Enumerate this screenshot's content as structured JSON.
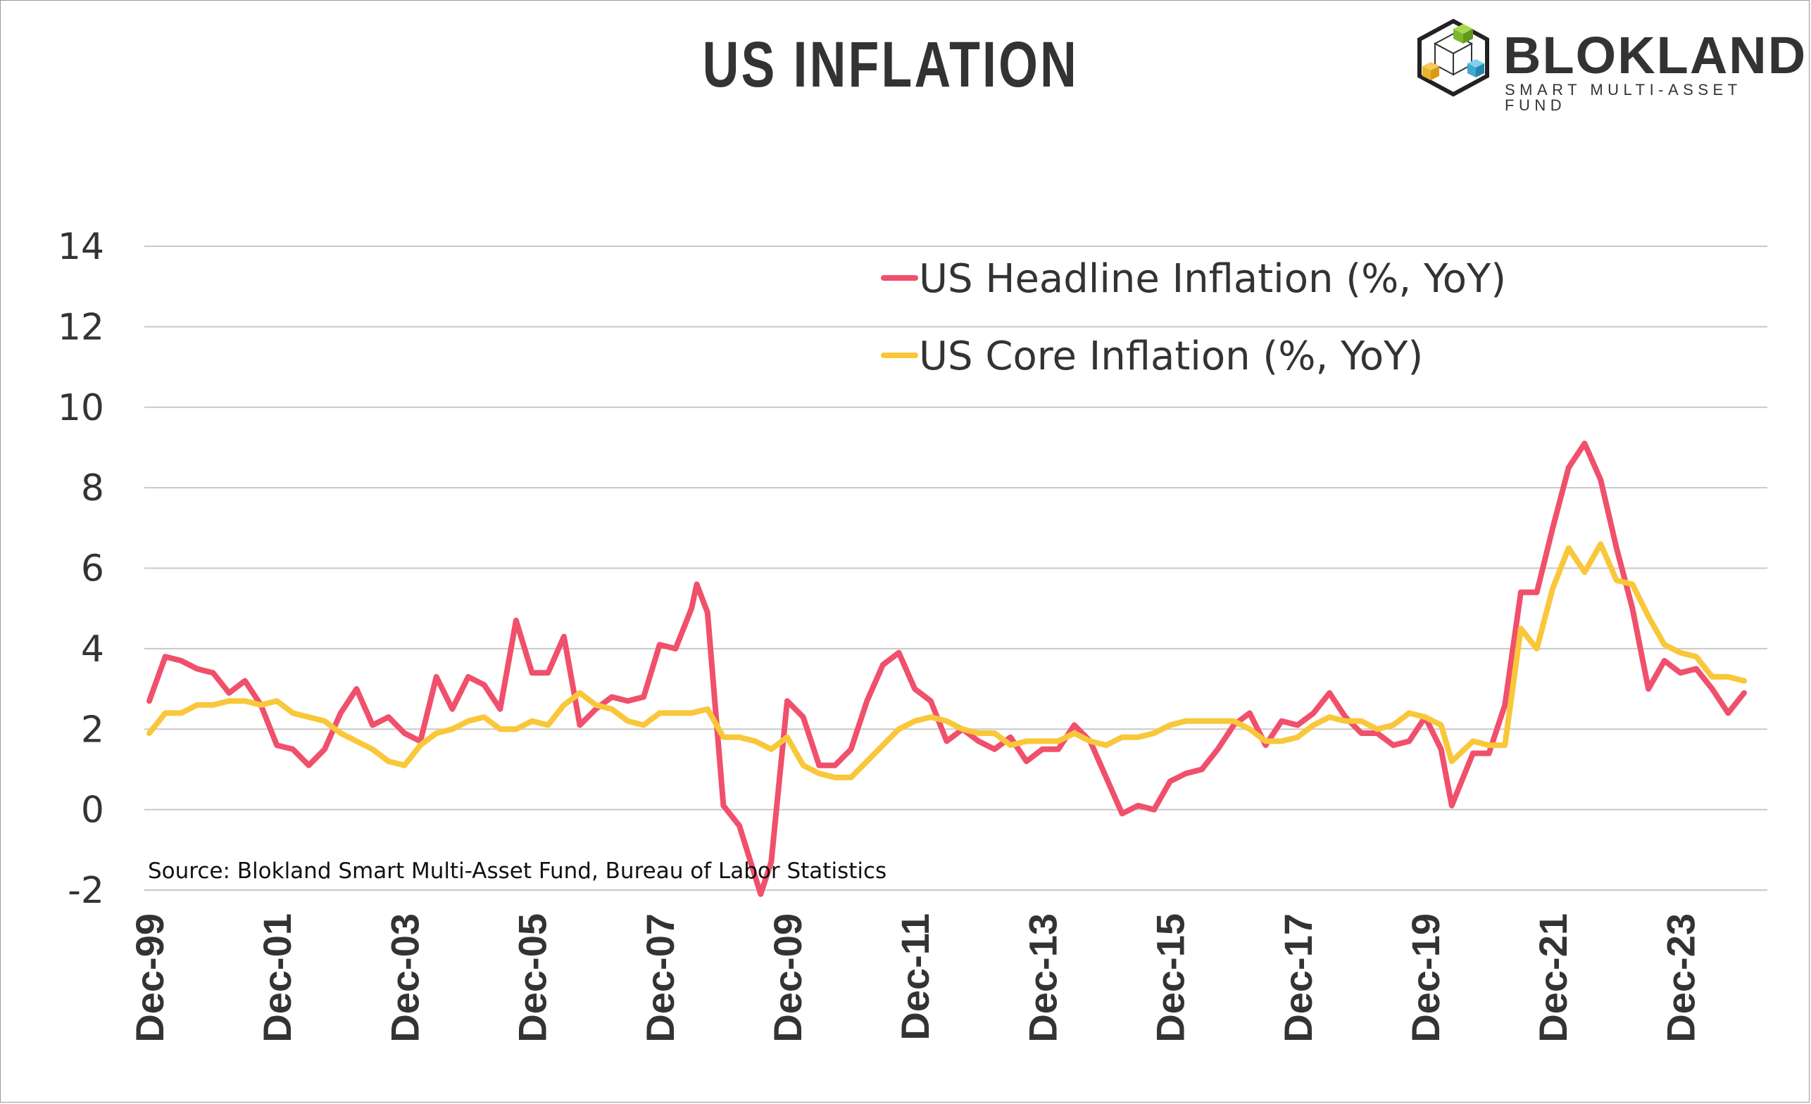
{
  "header": {
    "title": "US INFLATION"
  },
  "logo": {
    "name": "BLOKLAND",
    "tagline": "SMART MULTI-ASSET FUND",
    "icon": "cube-logo-icon"
  },
  "colors": {
    "headline": "#F0506B",
    "core": "#F9C73A",
    "grid": "#c8c8c8",
    "text": "#333333"
  },
  "source": "Source: Blokland Smart Multi-Asset Fund, Bureau of Labor Statistics",
  "chart_data": {
    "type": "line",
    "title": "US INFLATION",
    "xlabel": "",
    "ylabel": "",
    "ylim": [
      -2,
      14
    ],
    "yticks": [
      "-2",
      "0",
      "2",
      "4",
      "6",
      "8",
      "10",
      "12",
      "14"
    ],
    "xtick_labels": [
      "Dec-99",
      "Dec-01",
      "Dec-03",
      "Dec-05",
      "Dec-07",
      "Dec-09",
      "Dec-11",
      "Dec-13",
      "Dec-15",
      "Dec-17",
      "Dec-19",
      "Dec-21",
      "Dec-23"
    ],
    "xlim": [
      "1999-12",
      "2024-12"
    ],
    "grid": "horizontal",
    "legend_position": "top-right",
    "series": [
      {
        "name": "US Headline Inflation (%, YoY)",
        "color": "#F0506B",
        "points": [
          [
            "1999-12",
            2.7
          ],
          [
            "2000-03",
            3.8
          ],
          [
            "2000-06",
            3.7
          ],
          [
            "2000-09",
            3.5
          ],
          [
            "2000-12",
            3.4
          ],
          [
            "2001-03",
            2.9
          ],
          [
            "2001-06",
            3.2
          ],
          [
            "2001-09",
            2.6
          ],
          [
            "2001-12",
            1.6
          ],
          [
            "2002-03",
            1.5
          ],
          [
            "2002-06",
            1.1
          ],
          [
            "2002-09",
            1.5
          ],
          [
            "2002-12",
            2.4
          ],
          [
            "2003-03",
            3.0
          ],
          [
            "2003-06",
            2.1
          ],
          [
            "2003-09",
            2.3
          ],
          [
            "2003-12",
            1.9
          ],
          [
            "2004-03",
            1.7
          ],
          [
            "2004-06",
            3.3
          ],
          [
            "2004-09",
            2.5
          ],
          [
            "2004-12",
            3.3
          ],
          [
            "2005-03",
            3.1
          ],
          [
            "2005-06",
            2.5
          ],
          [
            "2005-09",
            4.7
          ],
          [
            "2005-12",
            3.4
          ],
          [
            "2006-03",
            3.4
          ],
          [
            "2006-06",
            4.3
          ],
          [
            "2006-09",
            2.1
          ],
          [
            "2006-12",
            2.5
          ],
          [
            "2007-03",
            2.8
          ],
          [
            "2007-06",
            2.7
          ],
          [
            "2007-09",
            2.8
          ],
          [
            "2007-12",
            4.1
          ],
          [
            "2008-03",
            4.0
          ],
          [
            "2008-06",
            5.0
          ],
          [
            "2008-07",
            5.6
          ],
          [
            "2008-09",
            4.9
          ],
          [
            "2008-12",
            0.1
          ],
          [
            "2009-03",
            -0.4
          ],
          [
            "2009-07",
            -2.1
          ],
          [
            "2009-09",
            -1.3
          ],
          [
            "2009-12",
            2.7
          ],
          [
            "2010-03",
            2.3
          ],
          [
            "2010-06",
            1.1
          ],
          [
            "2010-09",
            1.1
          ],
          [
            "2010-12",
            1.5
          ],
          [
            "2011-03",
            2.7
          ],
          [
            "2011-06",
            3.6
          ],
          [
            "2011-09",
            3.9
          ],
          [
            "2011-12",
            3.0
          ],
          [
            "2012-03",
            2.7
          ],
          [
            "2012-06",
            1.7
          ],
          [
            "2012-09",
            2.0
          ],
          [
            "2012-12",
            1.7
          ],
          [
            "2013-03",
            1.5
          ],
          [
            "2013-06",
            1.8
          ],
          [
            "2013-09",
            1.2
          ],
          [
            "2013-12",
            1.5
          ],
          [
            "2014-03",
            1.5
          ],
          [
            "2014-06",
            2.1
          ],
          [
            "2014-09",
            1.7
          ],
          [
            "2014-12",
            0.8
          ],
          [
            "2015-03",
            -0.1
          ],
          [
            "2015-06",
            0.1
          ],
          [
            "2015-09",
            0.0
          ],
          [
            "2015-12",
            0.7
          ],
          [
            "2016-03",
            0.9
          ],
          [
            "2016-06",
            1.0
          ],
          [
            "2016-09",
            1.5
          ],
          [
            "2016-12",
            2.1
          ],
          [
            "2017-03",
            2.4
          ],
          [
            "2017-06",
            1.6
          ],
          [
            "2017-09",
            2.2
          ],
          [
            "2017-12",
            2.1
          ],
          [
            "2018-03",
            2.4
          ],
          [
            "2018-06",
            2.9
          ],
          [
            "2018-09",
            2.3
          ],
          [
            "2018-12",
            1.9
          ],
          [
            "2019-03",
            1.9
          ],
          [
            "2019-06",
            1.6
          ],
          [
            "2019-09",
            1.7
          ],
          [
            "2019-12",
            2.3
          ],
          [
            "2020-03",
            1.5
          ],
          [
            "2020-05",
            0.1
          ],
          [
            "2020-09",
            1.4
          ],
          [
            "2020-12",
            1.4
          ],
          [
            "2021-03",
            2.6
          ],
          [
            "2021-06",
            5.4
          ],
          [
            "2021-09",
            5.4
          ],
          [
            "2021-12",
            7.0
          ],
          [
            "2022-03",
            8.5
          ],
          [
            "2022-06",
            9.1
          ],
          [
            "2022-09",
            8.2
          ],
          [
            "2022-12",
            6.5
          ],
          [
            "2023-03",
            5.0
          ],
          [
            "2023-06",
            3.0
          ],
          [
            "2023-09",
            3.7
          ],
          [
            "2023-12",
            3.4
          ],
          [
            "2024-03",
            3.5
          ],
          [
            "2024-06",
            3.0
          ],
          [
            "2024-09",
            2.4
          ],
          [
            "2024-12",
            2.9
          ]
        ]
      },
      {
        "name": "US Core Inflation (%, YoY)",
        "color": "#F9C73A",
        "points": [
          [
            "1999-12",
            1.9
          ],
          [
            "2000-03",
            2.4
          ],
          [
            "2000-06",
            2.4
          ],
          [
            "2000-09",
            2.6
          ],
          [
            "2000-12",
            2.6
          ],
          [
            "2001-03",
            2.7
          ],
          [
            "2001-06",
            2.7
          ],
          [
            "2001-09",
            2.6
          ],
          [
            "2001-12",
            2.7
          ],
          [
            "2002-03",
            2.4
          ],
          [
            "2002-06",
            2.3
          ],
          [
            "2002-09",
            2.2
          ],
          [
            "2002-12",
            1.9
          ],
          [
            "2003-03",
            1.7
          ],
          [
            "2003-06",
            1.5
          ],
          [
            "2003-09",
            1.2
          ],
          [
            "2003-12",
            1.1
          ],
          [
            "2004-03",
            1.6
          ],
          [
            "2004-06",
            1.9
          ],
          [
            "2004-09",
            2.0
          ],
          [
            "2004-12",
            2.2
          ],
          [
            "2005-03",
            2.3
          ],
          [
            "2005-06",
            2.0
          ],
          [
            "2005-09",
            2.0
          ],
          [
            "2005-12",
            2.2
          ],
          [
            "2006-03",
            2.1
          ],
          [
            "2006-06",
            2.6
          ],
          [
            "2006-09",
            2.9
          ],
          [
            "2006-12",
            2.6
          ],
          [
            "2007-03",
            2.5
          ],
          [
            "2007-06",
            2.2
          ],
          [
            "2007-09",
            2.1
          ],
          [
            "2007-12",
            2.4
          ],
          [
            "2008-03",
            2.4
          ],
          [
            "2008-06",
            2.4
          ],
          [
            "2008-09",
            2.5
          ],
          [
            "2008-12",
            1.8
          ],
          [
            "2009-03",
            1.8
          ],
          [
            "2009-06",
            1.7
          ],
          [
            "2009-09",
            1.5
          ],
          [
            "2009-12",
            1.8
          ],
          [
            "2010-03",
            1.1
          ],
          [
            "2010-06",
            0.9
          ],
          [
            "2010-09",
            0.8
          ],
          [
            "2010-12",
            0.8
          ],
          [
            "2011-03",
            1.2
          ],
          [
            "2011-06",
            1.6
          ],
          [
            "2011-09",
            2.0
          ],
          [
            "2011-12",
            2.2
          ],
          [
            "2012-03",
            2.3
          ],
          [
            "2012-06",
            2.2
          ],
          [
            "2012-09",
            2.0
          ],
          [
            "2012-12",
            1.9
          ],
          [
            "2013-03",
            1.9
          ],
          [
            "2013-06",
            1.6
          ],
          [
            "2013-09",
            1.7
          ],
          [
            "2013-12",
            1.7
          ],
          [
            "2014-03",
            1.7
          ],
          [
            "2014-06",
            1.9
          ],
          [
            "2014-09",
            1.7
          ],
          [
            "2014-12",
            1.6
          ],
          [
            "2015-03",
            1.8
          ],
          [
            "2015-06",
            1.8
          ],
          [
            "2015-09",
            1.9
          ],
          [
            "2015-12",
            2.1
          ],
          [
            "2016-03",
            2.2
          ],
          [
            "2016-06",
            2.2
          ],
          [
            "2016-09",
            2.2
          ],
          [
            "2016-12",
            2.2
          ],
          [
            "2017-03",
            2.0
          ],
          [
            "2017-06",
            1.7
          ],
          [
            "2017-09",
            1.7
          ],
          [
            "2017-12",
            1.8
          ],
          [
            "2018-03",
            2.1
          ],
          [
            "2018-06",
            2.3
          ],
          [
            "2018-09",
            2.2
          ],
          [
            "2018-12",
            2.2
          ],
          [
            "2019-03",
            2.0
          ],
          [
            "2019-06",
            2.1
          ],
          [
            "2019-09",
            2.4
          ],
          [
            "2019-12",
            2.3
          ],
          [
            "2020-03",
            2.1
          ],
          [
            "2020-05",
            1.2
          ],
          [
            "2020-09",
            1.7
          ],
          [
            "2020-12",
            1.6
          ],
          [
            "2021-03",
            1.6
          ],
          [
            "2021-06",
            4.5
          ],
          [
            "2021-09",
            4.0
          ],
          [
            "2021-12",
            5.5
          ],
          [
            "2022-03",
            6.5
          ],
          [
            "2022-06",
            5.9
          ],
          [
            "2022-09",
            6.6
          ],
          [
            "2022-12",
            5.7
          ],
          [
            "2023-03",
            5.6
          ],
          [
            "2023-06",
            4.8
          ],
          [
            "2023-09",
            4.1
          ],
          [
            "2023-12",
            3.9
          ],
          [
            "2024-03",
            3.8
          ],
          [
            "2024-06",
            3.3
          ],
          [
            "2024-09",
            3.3
          ],
          [
            "2024-12",
            3.2
          ]
        ]
      }
    ]
  }
}
